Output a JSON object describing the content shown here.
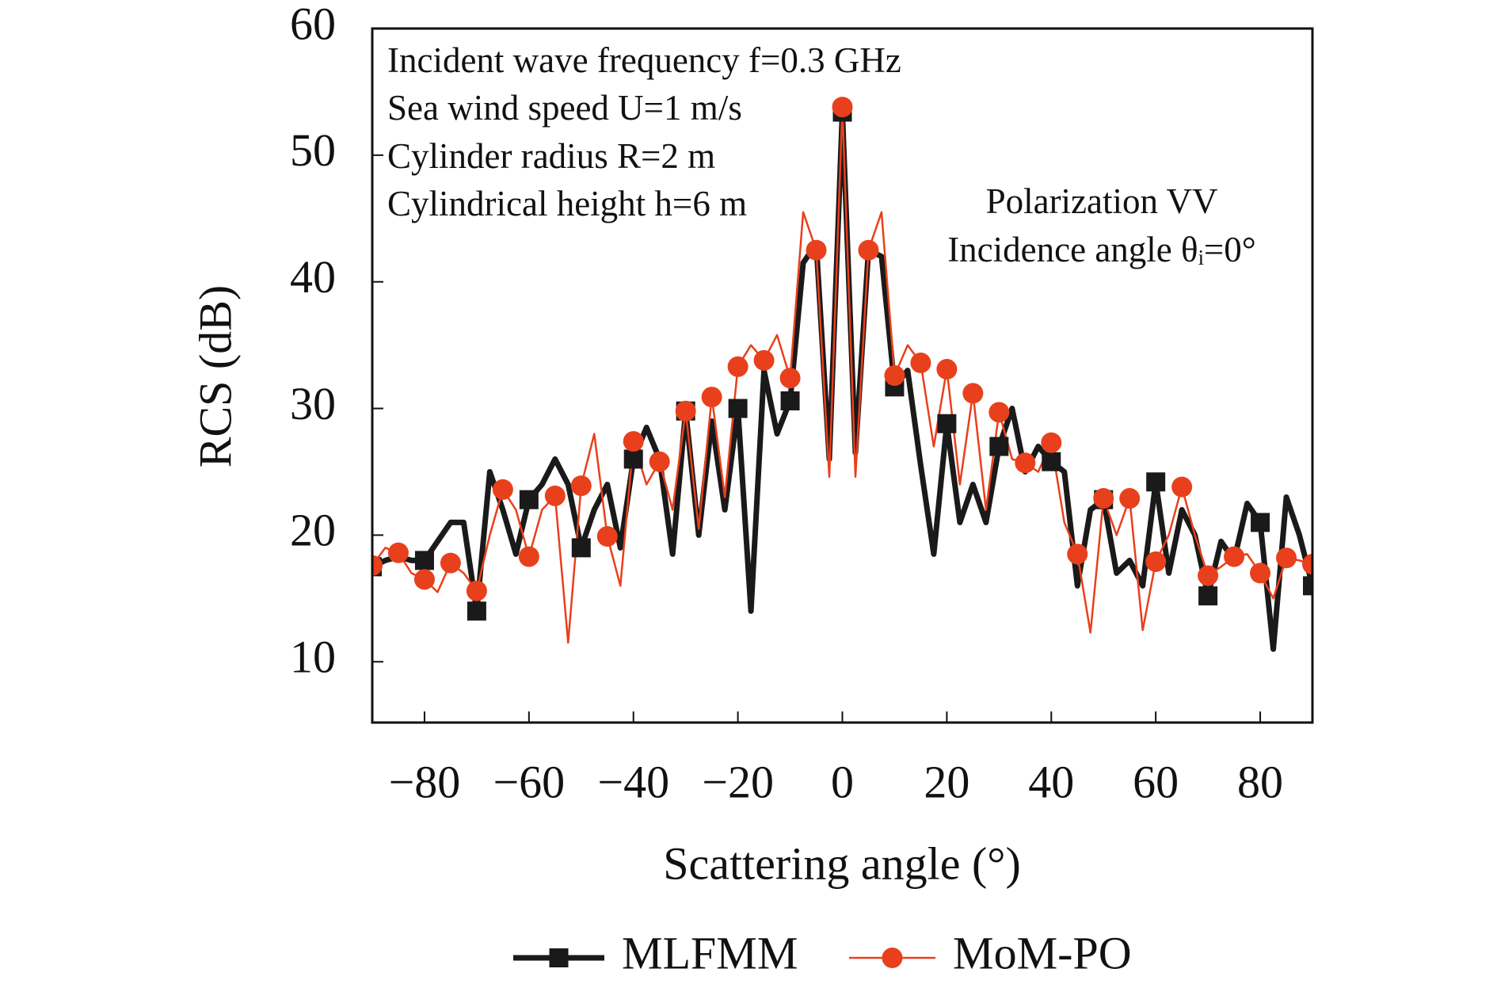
{
  "chart_data": {
    "type": "line",
    "xlabel": "Scattering angle (°)",
    "ylabel": "RCS (dB)",
    "annotations": [
      "Incident wave frequency f=0.3 GHz",
      "Sea wind speed U=1 m/s",
      "Cylinder radius R=2 m",
      "Cylindrical height h=6 m",
      "Polarization VV",
      "Incidence angle θᵢ=0°"
    ],
    "x": [
      -90,
      -87.5,
      -85,
      -82.5,
      -80,
      -77.5,
      -75,
      -72.5,
      -70,
      -67.5,
      -65,
      -62.5,
      -60,
      -57.5,
      -55,
      -52.5,
      -50,
      -47.5,
      -45,
      -42.5,
      -40,
      -37.5,
      -35,
      -32.5,
      -30,
      -27.5,
      -25,
      -22.5,
      -20,
      -17.5,
      -15,
      -12.5,
      -10,
      -7.5,
      -5,
      -2.5,
      0,
      2.5,
      5,
      7.5,
      10,
      12.5,
      15,
      17.5,
      20,
      22.5,
      25,
      27.5,
      30,
      32.5,
      35,
      37.5,
      40,
      42.5,
      45,
      47.5,
      50,
      52.5,
      55,
      57.5,
      60,
      62.5,
      65,
      67.5,
      70,
      72.5,
      75,
      77.5,
      80,
      82.5,
      85,
      87.5,
      90
    ],
    "series": [
      {
        "name": "MLFMM",
        "color": "#1a1a1a",
        "marker": "square",
        "values": [
          17.5,
          18,
          18.3,
          18,
          18,
          19.5,
          21,
          21,
          14,
          25,
          22,
          18.5,
          22.8,
          24,
          26,
          24,
          19,
          22,
          24,
          19,
          26,
          28.5,
          26,
          18.5,
          29.8,
          20,
          29,
          22,
          30,
          14,
          33,
          28,
          30.6,
          41.5,
          43,
          26,
          53.4,
          26.5,
          42.5,
          42,
          31.7,
          33,
          25.5,
          18.5,
          28.8,
          21,
          24,
          21,
          27,
          30,
          25,
          27,
          25.8,
          25,
          16,
          22,
          22.8,
          17,
          18,
          16,
          24.2,
          17,
          22,
          20,
          15.2,
          19.5,
          18,
          22.5,
          21,
          11,
          23,
          20,
          16
        ]
      },
      {
        "name": "MoM-PO",
        "color": "#e8401c",
        "marker": "circle",
        "values": [
          17.6,
          19,
          18.6,
          17,
          16.5,
          15.5,
          17.8,
          17,
          15.6,
          20,
          23.6,
          22,
          18.3,
          22,
          23.1,
          11.5,
          23.9,
          28,
          19.9,
          16,
          27.4,
          24,
          25.8,
          22,
          29.8,
          20.5,
          30.9,
          23,
          33.3,
          35,
          33.8,
          35.8,
          32.4,
          45.5,
          42.5,
          24.6,
          53.8,
          24.6,
          42.5,
          45.5,
          32.6,
          35,
          33.6,
          27,
          33.1,
          24,
          31.2,
          22,
          29.7,
          26,
          25.7,
          25,
          27.3,
          21,
          18.5,
          12.3,
          22.9,
          20,
          22.9,
          12.5,
          17.9,
          20,
          23.8,
          20,
          16.8,
          17.5,
          18.3,
          18.5,
          17,
          15,
          18.2,
          18,
          17.7
        ]
      }
    ],
    "xlim": [
      -90,
      90
    ],
    "ylim": [
      5.2,
      60
    ],
    "xticks": [
      {
        "value": -80,
        "label": "−80"
      },
      {
        "value": -60,
        "label": "−60"
      },
      {
        "value": -40,
        "label": "−40"
      },
      {
        "value": -20,
        "label": "−20"
      },
      0,
      20,
      40,
      60,
      80
    ],
    "yticks": [
      10,
      20,
      30,
      40,
      50,
      60
    ],
    "grid": false
  }
}
